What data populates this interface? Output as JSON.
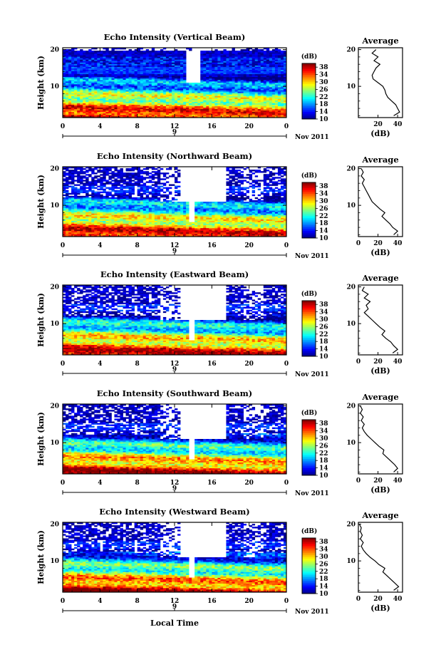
{
  "chart_data": {
    "type": "heatmap",
    "x_label": "Local Time",
    "y_label": "Height (km)",
    "x_ticks": [
      "0",
      "4",
      "8",
      "12",
      "16",
      "20",
      "0"
    ],
    "x_range_hours": [
      0,
      24
    ],
    "y_ticks": [
      "20",
      "10"
    ],
    "y_range_km": [
      1.5,
      20.5
    ],
    "date_marker": "9",
    "date_label": "Nov 2011",
    "colorbar": {
      "title": "(dB)",
      "range": [
        10,
        40
      ],
      "ticks": [
        "38",
        "34",
        "30",
        "26",
        "22",
        "18",
        "14",
        "10"
      ],
      "colormap": "jet"
    },
    "profile": {
      "title": "Average",
      "xlabel": "(dB)",
      "xlim": [
        0,
        45
      ],
      "ylim": [
        1.5,
        20.5
      ],
      "y_ticks": [
        "20",
        "10"
      ]
    },
    "panels": [
      {
        "title": "Echo Intensity (Vertical Beam)",
        "x_ticks": [
          "0",
          "4",
          "8",
          "12",
          "16",
          "20",
          "0"
        ],
        "profile_x_ticks": [
          "20",
          "40"
        ],
        "profile": {
          "height": [
            2,
            3,
            4,
            5,
            6,
            7,
            8,
            9,
            10,
            11,
            12,
            13,
            14,
            15,
            16,
            17,
            18,
            19,
            20
          ],
          "avg_db": [
            36,
            42,
            40,
            38,
            34,
            30,
            28,
            27,
            25,
            20,
            15,
            14,
            16,
            18,
            22,
            16,
            20,
            14,
            18
          ]
        }
      },
      {
        "title": "Echo Intensity (Northward Beam)",
        "x_ticks": [
          "0",
          "4",
          "8",
          "12",
          "16",
          "20",
          "0"
        ],
        "profile_x_ticks": [
          "0",
          "20",
          "40"
        ],
        "profile": {
          "height": [
            2,
            3,
            4,
            5,
            6,
            7,
            8,
            9,
            10,
            11,
            12,
            13,
            14,
            15,
            16,
            17,
            18,
            19,
            20
          ],
          "avg_db": [
            36,
            40,
            35,
            32,
            28,
            24,
            27,
            22,
            18,
            14,
            12,
            10,
            8,
            6,
            4,
            6,
            3,
            5,
            3
          ]
        }
      },
      {
        "title": "Echo Intensity (Eastward Beam)",
        "x_ticks": [
          "0",
          "4",
          "8",
          "12",
          "16",
          "20",
          "0"
        ],
        "profile_x_ticks": [
          "0",
          "20",
          "40"
        ],
        "profile": {
          "height": [
            2,
            3,
            4,
            5,
            6,
            7,
            8,
            9,
            10,
            11,
            12,
            13,
            14,
            15,
            16,
            17,
            18,
            19,
            20
          ],
          "avg_db": [
            35,
            40,
            36,
            33,
            28,
            24,
            27,
            22,
            18,
            14,
            10,
            6,
            10,
            8,
            12,
            6,
            10,
            4,
            6
          ]
        }
      },
      {
        "title": "Echo Intensity (Southward Beam)",
        "x_ticks": [
          "0",
          "4",
          "8",
          "12",
          "16",
          "20",
          "0"
        ],
        "profile_x_ticks": [
          "0",
          "20",
          "40"
        ],
        "profile": {
          "height": [
            2,
            3,
            4,
            5,
            6,
            7,
            8,
            9,
            10,
            11,
            12,
            13,
            14,
            15,
            16,
            17,
            18,
            19,
            20
          ],
          "avg_db": [
            36,
            40,
            37,
            33,
            29,
            25,
            26,
            21,
            17,
            13,
            9,
            6,
            4,
            6,
            3,
            5,
            2,
            4,
            2
          ]
        }
      },
      {
        "title": "Echo Intensity (Westward Beam)",
        "x_ticks": [
          "0",
          "4",
          "8",
          "12",
          "16",
          "20",
          "0"
        ],
        "profile_x_ticks": [
          "0",
          "20",
          "40"
        ],
        "profile": {
          "height": [
            2,
            3,
            4,
            5,
            6,
            7,
            8,
            9,
            10,
            11,
            12,
            13,
            14,
            15,
            16,
            17,
            18,
            19,
            20
          ],
          "avg_db": [
            36,
            41,
            37,
            33,
            29,
            25,
            27,
            21,
            17,
            12,
            8,
            5,
            3,
            5,
            2,
            4,
            2,
            3,
            1
          ]
        }
      }
    ]
  }
}
